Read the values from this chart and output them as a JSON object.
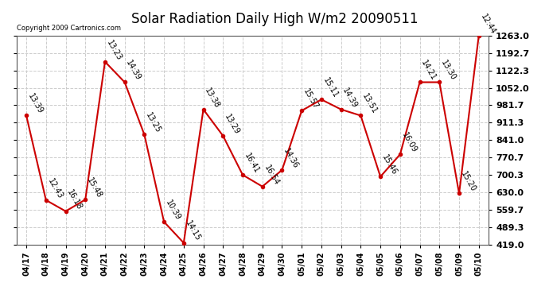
{
  "title": "Solar Radiation Daily High W/m2 20090511",
  "copyright": "Copyright 2009 Cartronics.com",
  "dates": [
    "04/17",
    "04/18",
    "04/19",
    "04/20",
    "04/21",
    "04/22",
    "04/23",
    "04/24",
    "04/25",
    "04/26",
    "04/27",
    "04/28",
    "04/29",
    "04/30",
    "05/01",
    "05/02",
    "05/03",
    "05/04",
    "05/05",
    "05/06",
    "05/07",
    "05/08",
    "05/09",
    "05/10"
  ],
  "values": [
    940,
    598,
    553,
    600,
    1158,
    1075,
    863,
    510,
    425,
    965,
    858,
    700,
    653,
    720,
    960,
    1005,
    965,
    940,
    693,
    783,
    1075,
    1075,
    625,
    1263
  ],
  "labels": [
    "13:39",
    "12:43",
    "16:18",
    "15:48",
    "13:23",
    "14:39",
    "13:25",
    "10:39",
    "14:15",
    "13:38",
    "13:29",
    "16:41",
    "16:54",
    "14:36",
    "15:57",
    "15:11",
    "14:39",
    "13:51",
    "15:46",
    "16:09",
    "14:21",
    "13:30",
    "15:20",
    "12:44"
  ],
  "ymin": 419.0,
  "ymax": 1263.0,
  "yticks": [
    419.0,
    489.3,
    559.7,
    630.0,
    700.3,
    770.7,
    841.0,
    911.3,
    981.7,
    1052.0,
    1122.3,
    1192.7,
    1263.0
  ],
  "line_color": "#cc0000",
  "marker_color": "#cc0000",
  "bg_color": "#ffffff",
  "grid_color": "#cccccc",
  "title_fontsize": 12,
  "annotation_fontsize": 7,
  "xlabel_fontsize": 7,
  "ylabel_fontsize": 8
}
